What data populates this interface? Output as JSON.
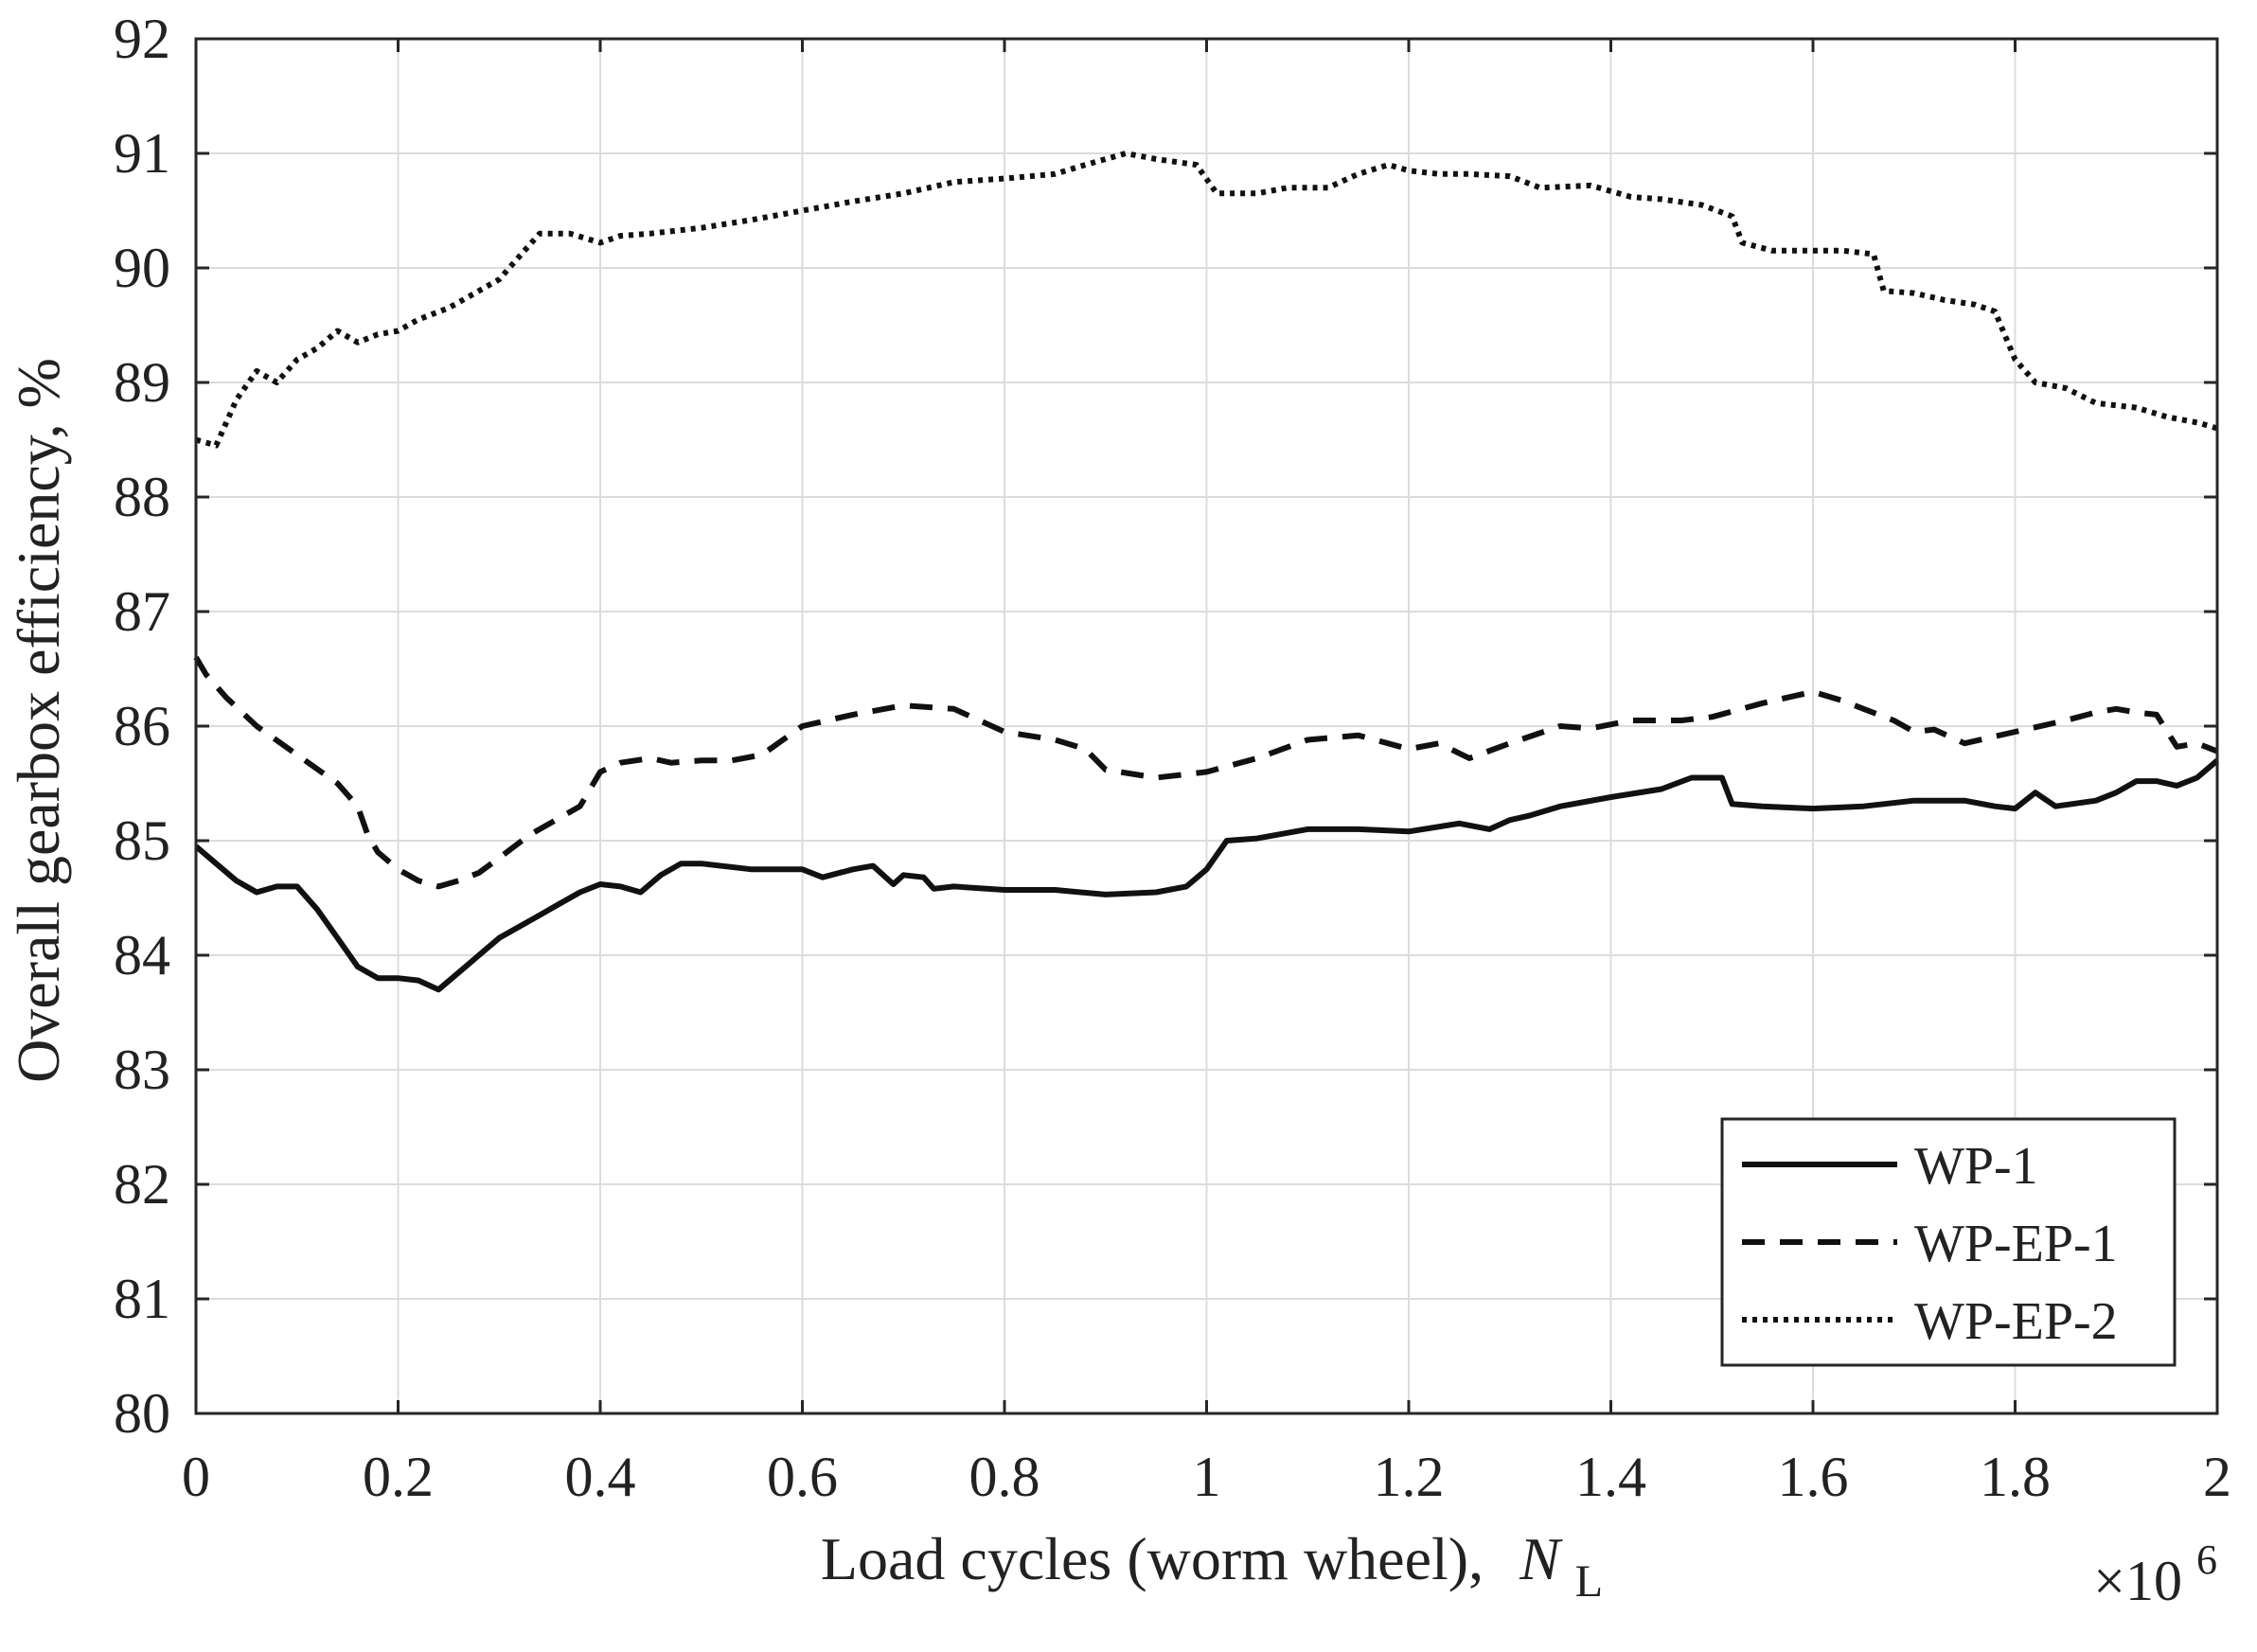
{
  "chart_data": {
    "type": "line",
    "title": "",
    "xlabel": "Load cycles (worm wheel),",
    "xlabel_symbol": "N",
    "xlabel_subscript": "L",
    "x_multiplier": "×10",
    "x_multiplier_exponent": "6",
    "ylabel": "Overall gearbox efficiency, %",
    "xlim": [
      0,
      2
    ],
    "ylim": [
      80,
      92
    ],
    "xticks": [
      0,
      0.2,
      0.4,
      0.6,
      0.8,
      1,
      1.2,
      1.4,
      1.6,
      1.8,
      2
    ],
    "xtick_labels": [
      "0",
      "0.2",
      "0.4",
      "0.6",
      "0.8",
      "1",
      "1.2",
      "1.4",
      "1.6",
      "1.8",
      "2"
    ],
    "yticks": [
      80,
      81,
      82,
      83,
      84,
      85,
      86,
      87,
      88,
      89,
      90,
      91,
      92
    ],
    "ytick_labels": [
      "80",
      "81",
      "82",
      "83",
      "84",
      "85",
      "86",
      "87",
      "88",
      "89",
      "90",
      "91",
      "92"
    ],
    "grid": true,
    "legend_position": "bottom-right",
    "series": [
      {
        "name": "WP-1",
        "style": "solid",
        "x": [
          0,
          0.02,
          0.04,
          0.06,
          0.08,
          0.1,
          0.12,
          0.14,
          0.16,
          0.18,
          0.2,
          0.22,
          0.24,
          0.26,
          0.28,
          0.3,
          0.32,
          0.34,
          0.36,
          0.38,
          0.4,
          0.42,
          0.44,
          0.46,
          0.48,
          0.5,
          0.55,
          0.6,
          0.62,
          0.65,
          0.67,
          0.69,
          0.7,
          0.72,
          0.73,
          0.75,
          0.8,
          0.85,
          0.9,
          0.95,
          0.98,
          1.0,
          1.02,
          1.05,
          1.1,
          1.15,
          1.2,
          1.25,
          1.28,
          1.3,
          1.32,
          1.35,
          1.4,
          1.45,
          1.48,
          1.51,
          1.52,
          1.55,
          1.6,
          1.65,
          1.7,
          1.75,
          1.78,
          1.8,
          1.82,
          1.84,
          1.88,
          1.9,
          1.92,
          1.94,
          1.96,
          1.98,
          2.0
        ],
        "values": [
          84.95,
          84.8,
          84.65,
          84.55,
          84.6,
          84.6,
          84.4,
          84.15,
          83.9,
          83.8,
          83.8,
          83.78,
          83.7,
          83.85,
          84.0,
          84.15,
          84.25,
          84.35,
          84.45,
          84.55,
          84.62,
          84.6,
          84.55,
          84.7,
          84.8,
          84.8,
          84.75,
          84.75,
          84.68,
          84.75,
          84.78,
          84.62,
          84.7,
          84.68,
          84.58,
          84.6,
          84.57,
          84.57,
          84.53,
          84.55,
          84.6,
          84.75,
          85.0,
          85.02,
          85.1,
          85.1,
          85.08,
          85.15,
          85.1,
          85.18,
          85.22,
          85.3,
          85.38,
          85.45,
          85.55,
          85.55,
          85.32,
          85.3,
          85.28,
          85.3,
          85.35,
          85.35,
          85.3,
          85.28,
          85.42,
          85.3,
          85.35,
          85.42,
          85.52,
          85.52,
          85.48,
          85.55,
          85.7
        ]
      },
      {
        "name": "WP-EP-1",
        "style": "dashed",
        "x": [
          0,
          0.01,
          0.03,
          0.06,
          0.1,
          0.14,
          0.16,
          0.17,
          0.18,
          0.2,
          0.22,
          0.24,
          0.26,
          0.28,
          0.3,
          0.33,
          0.36,
          0.38,
          0.4,
          0.42,
          0.45,
          0.47,
          0.5,
          0.53,
          0.56,
          0.6,
          0.65,
          0.7,
          0.75,
          0.8,
          0.85,
          0.88,
          0.9,
          0.95,
          1.0,
          1.05,
          1.1,
          1.15,
          1.2,
          1.23,
          1.26,
          1.3,
          1.35,
          1.38,
          1.42,
          1.47,
          1.5,
          1.55,
          1.6,
          1.63,
          1.65,
          1.68,
          1.7,
          1.72,
          1.75,
          1.8,
          1.85,
          1.88,
          1.9,
          1.92,
          1.94,
          1.96,
          1.98,
          2.0
        ],
        "values": [
          86.6,
          86.45,
          86.25,
          86.0,
          85.75,
          85.5,
          85.3,
          85.05,
          84.9,
          84.75,
          84.65,
          84.6,
          84.65,
          84.72,
          84.85,
          85.05,
          85.2,
          85.3,
          85.6,
          85.68,
          85.72,
          85.68,
          85.7,
          85.7,
          85.75,
          86.0,
          86.1,
          86.18,
          86.15,
          85.95,
          85.88,
          85.8,
          85.62,
          85.55,
          85.6,
          85.72,
          85.88,
          85.92,
          85.8,
          85.85,
          85.72,
          85.85,
          86.0,
          85.98,
          86.05,
          86.05,
          86.08,
          86.2,
          86.3,
          86.22,
          86.15,
          86.05,
          85.95,
          85.97,
          85.85,
          85.95,
          86.05,
          86.12,
          86.15,
          86.12,
          86.1,
          85.82,
          85.85,
          85.78
        ]
      },
      {
        "name": "WP-EP-2",
        "style": "dotted",
        "x": [
          0,
          0.02,
          0.04,
          0.06,
          0.07,
          0.08,
          0.1,
          0.12,
          0.14,
          0.16,
          0.18,
          0.2,
          0.22,
          0.25,
          0.27,
          0.3,
          0.32,
          0.34,
          0.37,
          0.4,
          0.42,
          0.45,
          0.5,
          0.55,
          0.6,
          0.65,
          0.7,
          0.75,
          0.8,
          0.85,
          0.88,
          0.92,
          0.95,
          0.99,
          1.01,
          1.05,
          1.08,
          1.12,
          1.15,
          1.18,
          1.2,
          1.23,
          1.26,
          1.3,
          1.33,
          1.38,
          1.42,
          1.45,
          1.49,
          1.52,
          1.53,
          1.56,
          1.6,
          1.63,
          1.66,
          1.67,
          1.7,
          1.73,
          1.76,
          1.78,
          1.8,
          1.82,
          1.85,
          1.88,
          1.92,
          1.95,
          1.98,
          2.0
        ],
        "values": [
          88.5,
          88.45,
          88.85,
          89.1,
          89.05,
          89.0,
          89.2,
          89.3,
          89.45,
          89.35,
          89.42,
          89.45,
          89.55,
          89.65,
          89.75,
          89.9,
          90.1,
          90.3,
          90.3,
          90.22,
          90.28,
          90.3,
          90.35,
          90.42,
          90.5,
          90.58,
          90.65,
          90.75,
          90.78,
          90.82,
          90.9,
          91.0,
          90.95,
          90.9,
          90.65,
          90.65,
          90.7,
          90.7,
          90.82,
          90.9,
          90.85,
          90.82,
          90.82,
          90.8,
          90.7,
          90.72,
          90.62,
          90.6,
          90.55,
          90.45,
          90.22,
          90.15,
          90.15,
          90.15,
          90.12,
          89.8,
          89.78,
          89.72,
          89.68,
          89.62,
          89.2,
          89.0,
          88.95,
          88.82,
          88.78,
          88.7,
          88.65,
          88.6
        ]
      }
    ]
  }
}
